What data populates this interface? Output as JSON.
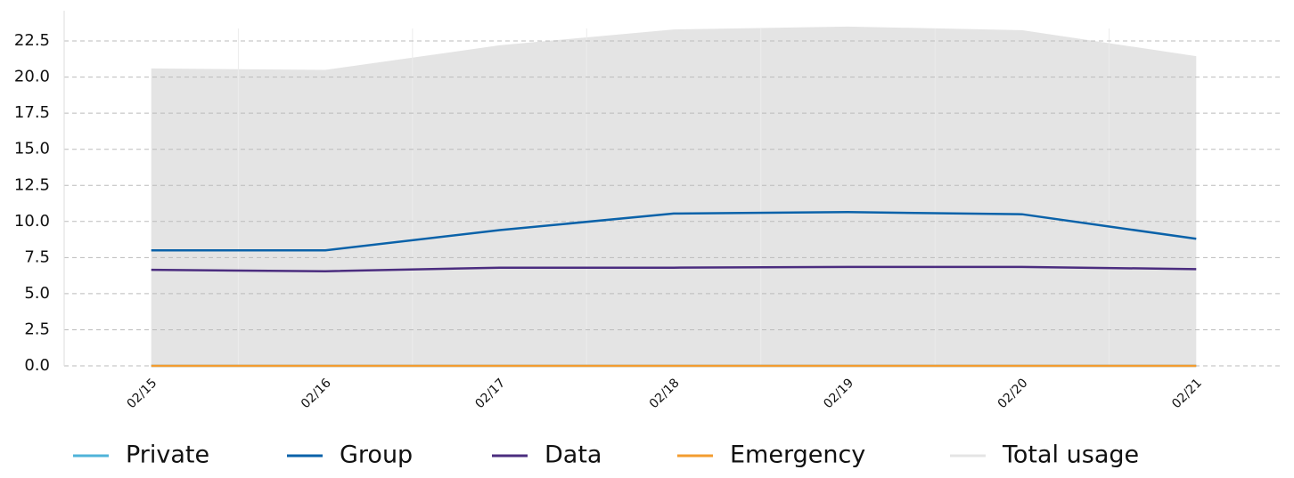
{
  "chart_data": {
    "type": "line",
    "categories": [
      "02/15",
      "02/16",
      "02/17",
      "02/18",
      "02/19",
      "02/20",
      "02/21"
    ],
    "series": [
      {
        "name": "Private",
        "color": "#4fb3d9",
        "values": [
          0,
          0,
          0,
          0,
          0,
          0,
          0
        ]
      },
      {
        "name": "Group",
        "color": "#0a62a9",
        "values": [
          8.0,
          8.0,
          9.4,
          10.55,
          10.65,
          10.5,
          8.8
        ]
      },
      {
        "name": "Data",
        "color": "#4b2d7f",
        "values": [
          6.65,
          6.55,
          6.8,
          6.8,
          6.85,
          6.85,
          6.7
        ]
      },
      {
        "name": "Emergency",
        "color": "#f39c30",
        "values": [
          0,
          0,
          0,
          0,
          0,
          0,
          0
        ]
      },
      {
        "name": "Total usage",
        "color": "#e4e4e4",
        "area": true,
        "values": [
          20.6,
          20.5,
          22.2,
          23.3,
          23.5,
          23.25,
          21.45
        ]
      }
    ],
    "ylim": [
      0,
      24.6
    ],
    "yticks": [
      {
        "value": 0,
        "label": "0.0"
      },
      2.5,
      {
        "value": 5,
        "label": "5.0"
      },
      7.5,
      {
        "value": 10,
        "label": "10.0"
      },
      12.5,
      {
        "value": 15,
        "label": "15.0"
      },
      17.5,
      {
        "value": 20,
        "label": "20.0"
      },
      22.5
    ],
    "grid": true,
    "legend": "bottom"
  }
}
